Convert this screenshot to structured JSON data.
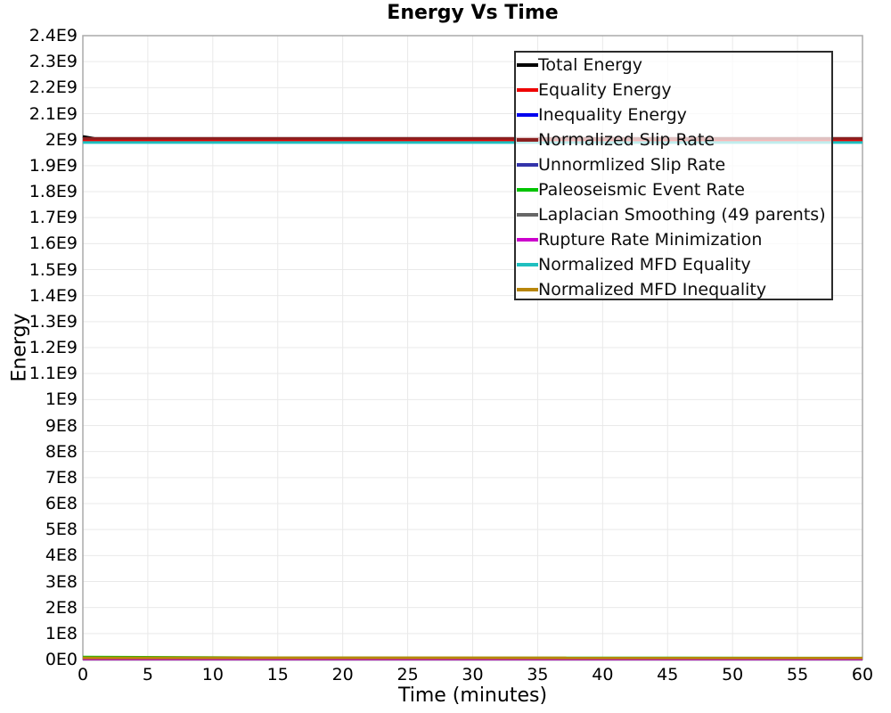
{
  "chart_data": {
    "type": "line",
    "title": "Energy Vs Time",
    "xlabel": "Time (minutes)",
    "ylabel": "Energy",
    "xlim": [
      0,
      60
    ],
    "ylim": [
      0,
      2400000000.0
    ],
    "grid": true,
    "grid_color": "#e9e9e9",
    "plot_border_color": "#aaaaaa",
    "legend_position": "upper right",
    "x_tick_labels": [
      "0",
      "5",
      "10",
      "15",
      "20",
      "25",
      "30",
      "35",
      "40",
      "45",
      "50",
      "55",
      "60"
    ],
    "x_tick_values": [
      0,
      5,
      10,
      15,
      20,
      25,
      30,
      35,
      40,
      45,
      50,
      55,
      60
    ],
    "y_tick_labels": [
      "0E0",
      "1E8",
      "2E8",
      "3E8",
      "4E8",
      "5E8",
      "6E8",
      "7E8",
      "8E8",
      "9E8",
      "1E9",
      "1.1E9",
      "1.2E9",
      "1.3E9",
      "1.4E9",
      "1.5E9",
      "1.6E9",
      "1.7E9",
      "1.8E9",
      "1.9E9",
      "2E9",
      "2.1E9",
      "2.2E9",
      "2.3E9",
      "2.4E9"
    ],
    "y_tick_values": [
      0,
      100000000.0,
      200000000.0,
      300000000.0,
      400000000.0,
      500000000.0,
      600000000.0,
      700000000.0,
      800000000.0,
      900000000.0,
      1000000000.0,
      1100000000.0,
      1200000000.0,
      1300000000.0,
      1400000000.0,
      1500000000.0,
      1600000000.0,
      1700000000.0,
      1800000000.0,
      1900000000.0,
      2000000000.0,
      2100000000.0,
      2200000000.0,
      2300000000.0,
      2400000000.0
    ],
    "series": [
      {
        "name": "Total Energy",
        "color": "#000000",
        "x": [
          0,
          0.9,
          60
        ],
        "y": [
          2012000000.0,
          2004500000.0,
          2004500000.0
        ]
      },
      {
        "name": "Equality Energy",
        "color": "#ee0000",
        "x": [
          0,
          60
        ],
        "y": [
          1997500000.0,
          1997500000.0
        ]
      },
      {
        "name": "Inequality Energy",
        "color": "#0000ee",
        "x": [
          0,
          60
        ],
        "y": [
          4000000.0,
          4000000.0
        ]
      },
      {
        "name": "Normalized Slip Rate",
        "color": "#8b2020",
        "x": [
          0,
          60
        ],
        "y": [
          2004500000.0,
          2004500000.0
        ]
      },
      {
        "name": "Unnormlized Slip Rate",
        "color": "#3333aa",
        "x": [
          0,
          60
        ],
        "y": [
          3000000.0,
          3000000.0
        ]
      },
      {
        "name": "Paleoseismic Event Rate",
        "color": "#00c400",
        "x": [
          0,
          15,
          60
        ],
        "y": [
          9500000.0,
          6500000.0,
          5500000.0
        ]
      },
      {
        "name": "Laplacian Smoothing (49 parents)",
        "color": "#666666",
        "x": [
          0,
          60
        ],
        "y": [
          1000000.0,
          1000000.0
        ]
      },
      {
        "name": "Rupture Rate Minimization",
        "color": "#cc00cc",
        "x": [
          0,
          60
        ],
        "y": [
          2500000.0,
          2500000.0
        ]
      },
      {
        "name": "Normalized MFD Equality",
        "color": "#1fbfbf",
        "x": [
          0,
          60
        ],
        "y": [
          1989000000.0,
          1989000000.0
        ]
      },
      {
        "name": "Normalized MFD Inequality",
        "color": "#b8860b",
        "x": [
          0,
          60
        ],
        "y": [
          6500000.0,
          6000000.0
        ]
      }
    ]
  }
}
